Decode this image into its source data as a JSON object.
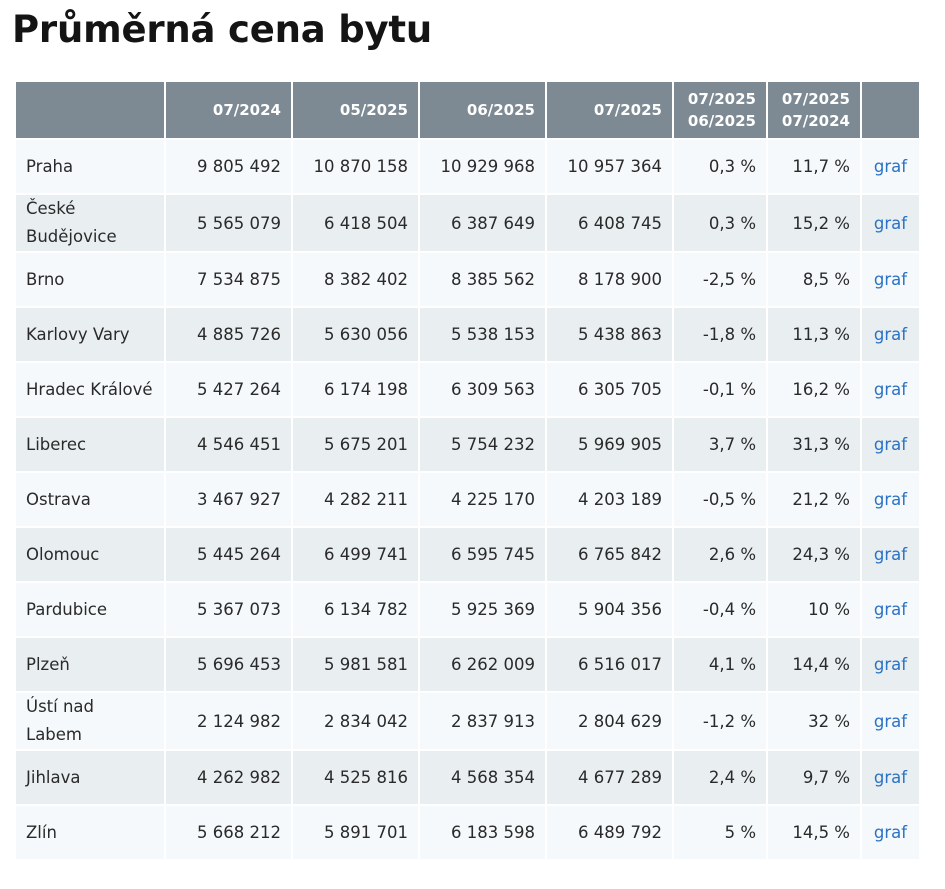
{
  "page": {
    "title": "Průměrná cena bytu"
  },
  "table": {
    "columns": [
      {
        "label": ""
      },
      {
        "label": "07/2024"
      },
      {
        "label": "05/2025"
      },
      {
        "label": "06/2025"
      },
      {
        "label": "07/2025"
      },
      {
        "line1": "07/2025",
        "line2": "06/2025"
      },
      {
        "line1": "07/2025",
        "line2": "07/2024"
      },
      {
        "label": ""
      }
    ],
    "rows": [
      {
        "city": "Praha",
        "v0724": "9 805 492",
        "v0525": "10 870 158",
        "v0625": "10 929 968",
        "v0725": "10 957 364",
        "mom": "0,3 %",
        "yoy": "11,7 %",
        "link": "graf"
      },
      {
        "city": "České Budějovice",
        "v0724": "5 565 079",
        "v0525": "6 418 504",
        "v0625": "6 387 649",
        "v0725": "6 408 745",
        "mom": "0,3 %",
        "yoy": "15,2 %",
        "link": "graf"
      },
      {
        "city": "Brno",
        "v0724": "7 534 875",
        "v0525": "8 382 402",
        "v0625": "8 385 562",
        "v0725": "8 178 900",
        "mom": "-2,5 %",
        "yoy": "8,5 %",
        "link": "graf"
      },
      {
        "city": "Karlovy Vary",
        "v0724": "4 885 726",
        "v0525": "5 630 056",
        "v0625": "5 538 153",
        "v0725": "5 438 863",
        "mom": "-1,8 %",
        "yoy": "11,3 %",
        "link": "graf"
      },
      {
        "city": "Hradec Králové",
        "v0724": "5 427 264",
        "v0525": "6 174 198",
        "v0625": "6 309 563",
        "v0725": "6 305 705",
        "mom": "-0,1 %",
        "yoy": "16,2 %",
        "link": "graf"
      },
      {
        "city": "Liberec",
        "v0724": "4 546 451",
        "v0525": "5 675 201",
        "v0625": "5 754 232",
        "v0725": "5 969 905",
        "mom": "3,7 %",
        "yoy": "31,3 %",
        "link": "graf"
      },
      {
        "city": "Ostrava",
        "v0724": "3 467 927",
        "v0525": "4 282 211",
        "v0625": "4 225 170",
        "v0725": "4 203 189",
        "mom": "-0,5 %",
        "yoy": "21,2 %",
        "link": "graf"
      },
      {
        "city": "Olomouc",
        "v0724": "5 445 264",
        "v0525": "6 499 741",
        "v0625": "6 595 745",
        "v0725": "6 765 842",
        "mom": "2,6 %",
        "yoy": "24,3 %",
        "link": "graf"
      },
      {
        "city": "Pardubice",
        "v0724": "5 367 073",
        "v0525": "6 134 782",
        "v0625": "5 925 369",
        "v0725": "5 904 356",
        "mom": "-0,4 %",
        "yoy": "10 %",
        "link": "graf"
      },
      {
        "city": "Plzeň",
        "v0724": "5 696 453",
        "v0525": "5 981 581",
        "v0625": "6 262 009",
        "v0725": "6 516 017",
        "mom": "4,1 %",
        "yoy": "14,4 %",
        "link": "graf"
      },
      {
        "city": "Ústí nad Labem",
        "v0724": "2 124 982",
        "v0525": "2 834 042",
        "v0625": "2 837 913",
        "v0725": "2 804 629",
        "mom": "-1,2 %",
        "yoy": "32 %",
        "link": "graf"
      },
      {
        "city": "Jihlava",
        "v0724": "4 262 982",
        "v0525": "4 525 816",
        "v0625": "4 568 354",
        "v0725": "4 677 289",
        "mom": "2,4 %",
        "yoy": "9,7 %",
        "link": "graf"
      },
      {
        "city": "Zlín",
        "v0724": "5 668 212",
        "v0525": "5 891 701",
        "v0625": "6 183 598",
        "v0725": "6 489 792",
        "mom": "5 %",
        "yoy": "14,5 %",
        "link": "graf"
      }
    ]
  },
  "colors": {
    "header_bg": "#7d8a93",
    "row_odd": "#f5f9fb",
    "row_even": "#e9eef1",
    "link": "#2a72c4"
  }
}
